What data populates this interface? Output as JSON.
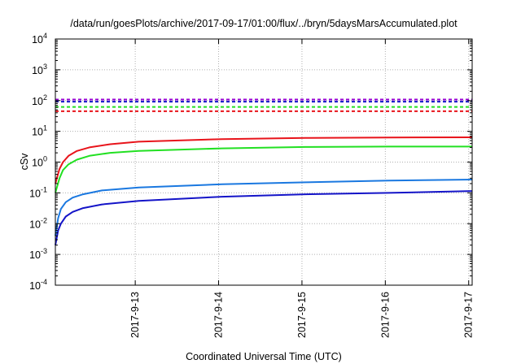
{
  "chart_data": {
    "type": "line",
    "title": "/data/run/goesPlots/archive/2017-09-17/01:00/flux/../bryn/5daysMarsAccumulated.plot",
    "xlabel": "Coordinated Universal Time (UTC)",
    "ylabel": "cSv",
    "x_scale": "time",
    "y_scale": "log",
    "xlim": [
      "2017-09-12T01:00",
      "2017-09-17T01:00"
    ],
    "ylim": [
      0.0001,
      10000
    ],
    "grid": true,
    "x_ticks": [
      "2017-9-13",
      "2017-9-14",
      "2017-9-15",
      "2017-9-16",
      "2017-9-17"
    ],
    "y_ticks": [
      {
        "base": "10",
        "exp": "-4"
      },
      {
        "base": "10",
        "exp": "-3"
      },
      {
        "base": "10",
        "exp": "-2"
      },
      {
        "base": "10",
        "exp": "-1"
      },
      {
        "base": "10",
        "exp": "0"
      },
      {
        "base": "10",
        "exp": "1"
      },
      {
        "base": "10",
        "exp": "2"
      },
      {
        "base": "10",
        "exp": "3"
      },
      {
        "base": "10",
        "exp": "4"
      }
    ],
    "series": [
      {
        "color": "#e8141b",
        "style": "solid",
        "x": [
          "2017-09-12T01:00",
          "2017-09-12T02:12",
          "2017-09-12T03:12",
          "2017-09-12T04:48",
          "2017-09-12T07:12",
          "2017-09-12T10:48",
          "2017-09-12T16:48",
          "2017-09-13T01:00",
          "2017-09-14T01:00",
          "2017-09-15T01:00",
          "2017-09-16T01:00",
          "2017-09-17T01:00"
        ],
        "y": [
          0.2,
          0.6,
          1.0,
          1.6,
          2.3,
          3.0,
          3.8,
          4.6,
          5.6,
          6.1,
          6.3,
          6.4
        ]
      },
      {
        "color": "#22e022",
        "style": "solid",
        "x": [
          "2017-09-12T01:00",
          "2017-09-12T02:12",
          "2017-09-12T03:12",
          "2017-09-12T04:48",
          "2017-09-12T07:12",
          "2017-09-12T10:48",
          "2017-09-12T16:48",
          "2017-09-13T01:00",
          "2017-09-14T01:00",
          "2017-09-15T01:00",
          "2017-09-16T01:00",
          "2017-09-17T01:00"
        ],
        "y": [
          0.1,
          0.3,
          0.55,
          0.85,
          1.2,
          1.6,
          2.0,
          2.3,
          2.8,
          3.1,
          3.2,
          3.2
        ]
      },
      {
        "color": "#1a78e0",
        "style": "solid",
        "x": [
          "2017-09-12T01:00",
          "2017-09-12T01:48",
          "2017-09-12T02:36",
          "2017-09-12T04:00",
          "2017-09-12T06:00",
          "2017-09-12T09:00",
          "2017-09-12T14:24",
          "2017-09-13T01:00",
          "2017-09-14T01:00",
          "2017-09-15T01:00",
          "2017-09-16T01:00",
          "2017-09-17T01:00"
        ],
        "y": [
          0.004,
          0.015,
          0.03,
          0.05,
          0.07,
          0.09,
          0.12,
          0.15,
          0.19,
          0.22,
          0.25,
          0.27
        ]
      },
      {
        "color": "#1414c8",
        "style": "solid",
        "x": [
          "2017-09-12T01:00",
          "2017-09-12T01:48",
          "2017-09-12T02:36",
          "2017-09-12T04:00",
          "2017-09-12T06:00",
          "2017-09-12T09:00",
          "2017-09-12T14:24",
          "2017-09-13T01:00",
          "2017-09-14T01:00",
          "2017-09-15T01:00",
          "2017-09-16T01:00",
          "2017-09-17T01:00"
        ],
        "y": [
          0.002,
          0.006,
          0.01,
          0.017,
          0.024,
          0.032,
          0.042,
          0.055,
          0.075,
          0.09,
          0.1,
          0.115
        ]
      },
      {
        "color": "#e8141b",
        "style": "dashed",
        "x": [
          "2017-09-12T01:00",
          "2017-09-17T01:00"
        ],
        "y": [
          45,
          45
        ]
      },
      {
        "color": "#22e022",
        "style": "dashed",
        "x": [
          "2017-09-12T01:00",
          "2017-09-17T01:00"
        ],
        "y": [
          62,
          62
        ]
      },
      {
        "color": "#1414c8",
        "style": "dashed",
        "x": [
          "2017-09-12T01:00",
          "2017-09-17T01:00"
        ],
        "y": [
          92,
          92
        ]
      },
      {
        "color": "#9400d3",
        "style": "dashed",
        "x": [
          "2017-09-12T01:00",
          "2017-09-17T01:00"
        ],
        "y": [
          108,
          108
        ]
      }
    ]
  }
}
